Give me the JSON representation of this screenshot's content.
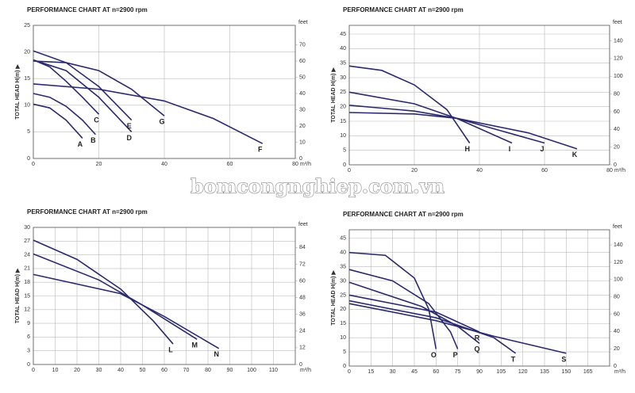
{
  "watermark": "bomcongnghiep.com.vn",
  "chart_data": [
    {
      "type": "line",
      "title": "PERFORMANCE CHART AT n=2900 rpm",
      "ylabel": "TOTAL HEAD H(m) ▶",
      "y2label": "feet",
      "xlabel": "m³/h",
      "xlim": [
        0,
        80
      ],
      "xticks": [
        0,
        20,
        40,
        60,
        80
      ],
      "ylim": [
        0,
        25
      ],
      "yticks": [
        0,
        5,
        10,
        15,
        20,
        25
      ],
      "y2lim": [
        0,
        82
      ],
      "y2ticks": [
        0,
        10,
        20,
        30,
        40,
        50,
        60,
        70
      ],
      "grid": true,
      "series": [
        {
          "name": "A",
          "color": "#2b2a6e",
          "x": [
            0,
            5,
            10,
            15
          ],
          "values": [
            10.2,
            9.5,
            7.2,
            3.8
          ]
        },
        {
          "name": "B",
          "color": "#2b2a6e",
          "x": [
            0,
            5,
            10,
            15,
            19
          ],
          "values": [
            12.2,
            11.5,
            9.8,
            7.2,
            4.5
          ]
        },
        {
          "name": "C",
          "color": "#2b2a6e",
          "x": [
            0,
            5,
            10,
            15,
            20
          ],
          "values": [
            18.5,
            17.2,
            14.5,
            11.5,
            8.3
          ]
        },
        {
          "name": "D",
          "color": "#2b2a6e",
          "x": [
            0,
            10,
            20,
            30
          ],
          "values": [
            18.5,
            16.5,
            11.5,
            5
          ]
        },
        {
          "name": "E",
          "color": "#2b2a6e",
          "x": [
            0,
            10,
            20,
            30
          ],
          "values": [
            20.2,
            18,
            13.5,
            7.2
          ]
        },
        {
          "name": "F",
          "color": "#2b2a6e",
          "x": [
            0,
            20,
            40,
            55,
            70
          ],
          "values": [
            14,
            13,
            10.8,
            7.5,
            2.8
          ]
        },
        {
          "name": "G",
          "color": "#2b2a6e",
          "x": [
            0,
            10,
            20,
            30,
            40
          ],
          "values": [
            18.3,
            18,
            16.5,
            13,
            8
          ]
        }
      ]
    },
    {
      "type": "line",
      "title": "PERFORMANCE CHART AT n=2900 rpm",
      "ylabel": "TOTAL HEAD H(m) ▶",
      "y2label": "feet",
      "xlabel": "m³/h",
      "xlim": [
        0,
        80
      ],
      "xticks": [
        0,
        20,
        40,
        60,
        80
      ],
      "ylim": [
        0,
        48
      ],
      "yticks": [
        0,
        5,
        10,
        15,
        20,
        25,
        30,
        35,
        40,
        45
      ],
      "y2lim": [
        0,
        157.5
      ],
      "y2ticks": [
        0,
        20,
        40,
        60,
        80,
        100,
        120,
        140
      ],
      "grid": true,
      "series": [
        {
          "name": "H",
          "color": "#2b2a6e",
          "x": [
            0,
            10,
            20,
            30,
            37
          ],
          "values": [
            34,
            32.5,
            27.5,
            19,
            7.5
          ]
        },
        {
          "name": "I",
          "color": "#2b2a6e",
          "x": [
            0,
            20,
            33,
            50
          ],
          "values": [
            25,
            21,
            16,
            7.5
          ]
        },
        {
          "name": "J",
          "color": "#2b2a6e",
          "x": [
            0,
            20,
            33,
            60
          ],
          "values": [
            20.5,
            18.5,
            16,
            7.5
          ]
        },
        {
          "name": "K",
          "color": "#2b2a6e",
          "x": [
            0,
            20,
            33,
            55,
            70
          ],
          "values": [
            18,
            17.5,
            16,
            11,
            5.5
          ]
        }
      ]
    },
    {
      "type": "line",
      "title": "PERFORMANCE CHART AT n=2900 rpm",
      "ylabel": "TOTAL HEAD H(m) ▶",
      "y2label": "feet",
      "xlabel": "m³/h",
      "xlim": [
        0,
        120
      ],
      "xticks": [
        0,
        10,
        20,
        30,
        40,
        50,
        60,
        70,
        80,
        90,
        100,
        110
      ],
      "ylim": [
        0,
        30
      ],
      "yticks": [
        0,
        3,
        6,
        9,
        12,
        15,
        18,
        21,
        24,
        27,
        30
      ],
      "y2lim": [
        0,
        98.4
      ],
      "y2ticks": [
        0,
        12,
        24,
        36,
        48,
        60,
        72,
        84
      ],
      "grid": true,
      "series": [
        {
          "name": "L",
          "color": "#2b2a6e",
          "x": [
            0,
            20,
            40,
            55,
            64
          ],
          "values": [
            27.2,
            23,
            16.5,
            9.5,
            4.5
          ]
        },
        {
          "name": "M",
          "color": "#2b2a6e",
          "x": [
            0,
            30,
            50,
            75
          ],
          "values": [
            24.2,
            18.5,
            13,
            5.5
          ]
        },
        {
          "name": "N",
          "color": "#2b2a6e",
          "x": [
            0,
            40,
            60,
            85
          ],
          "values": [
            19.7,
            15.5,
            10.5,
            3.5
          ]
        }
      ]
    },
    {
      "type": "line",
      "title": "PERFORMANCE CHART AT n=2900 rpm",
      "ylabel": "TOTAL HEAD H(m) ▶",
      "y2label": "feet",
      "xlabel": "m³/h",
      "xlim": [
        0,
        180
      ],
      "xticks": [
        0,
        15,
        30,
        45,
        60,
        75,
        90,
        105,
        120,
        135,
        150,
        165
      ],
      "ylim": [
        0,
        48
      ],
      "yticks": [
        0,
        5,
        10,
        15,
        20,
        25,
        30,
        35,
        40,
        45
      ],
      "y2lim": [
        0,
        157.5
      ],
      "y2ticks": [
        0,
        20,
        40,
        60,
        80,
        100,
        120,
        140
      ],
      "grid": true,
      "series": [
        {
          "name": "O",
          "color": "#2b2a6e",
          "x": [
            0,
            25,
            45,
            55,
            60
          ],
          "values": [
            40,
            39,
            31,
            20,
            6
          ]
        },
        {
          "name": "P",
          "color": "#2b2a6e",
          "x": [
            0,
            30,
            55,
            70,
            75
          ],
          "values": [
            34,
            30,
            22,
            12,
            6
          ]
        },
        {
          "name": "Q",
          "color": "#2b2a6e",
          "x": [
            0,
            50,
            75,
            90
          ],
          "values": [
            29.5,
            21,
            14,
            8
          ]
        },
        {
          "name": "R",
          "color": "#2b2a6e",
          "x": [
            0,
            60,
            90
          ],
          "values": [
            25,
            19,
            12
          ]
        },
        {
          "name": "T",
          "color": "#2b2a6e",
          "x": [
            0,
            60,
            100,
            115
          ],
          "values": [
            23,
            17,
            10,
            4.5
          ]
        },
        {
          "name": "S",
          "color": "#2b2a6e",
          "x": [
            0,
            60,
            100,
            150
          ],
          "values": [
            22,
            16,
            10.5,
            4.5
          ]
        }
      ]
    }
  ]
}
